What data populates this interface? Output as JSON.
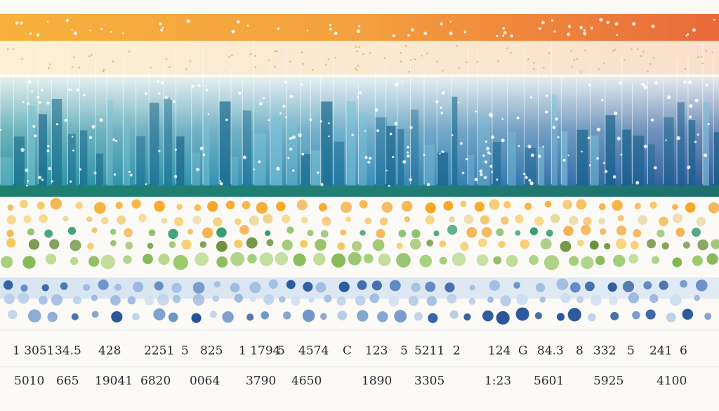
{
  "texts": {
    "row1": [
      "1 3051",
      "34.5",
      "428",
      "2251",
      "5",
      "825",
      "1 1794",
      "5",
      "4574",
      "C",
      "123",
      "5",
      "5211",
      "2",
      "124",
      "G",
      "84.3",
      "8",
      "332",
      "5",
      "241",
      "6"
    ],
    "row2": [
      "5010",
      "665",
      "19041",
      "6820",
      "0064",
      "3790",
      "4650",
      "1890",
      "3305",
      "1:23",
      "5601",
      "5925",
      "4100"
    ]
  }
}
